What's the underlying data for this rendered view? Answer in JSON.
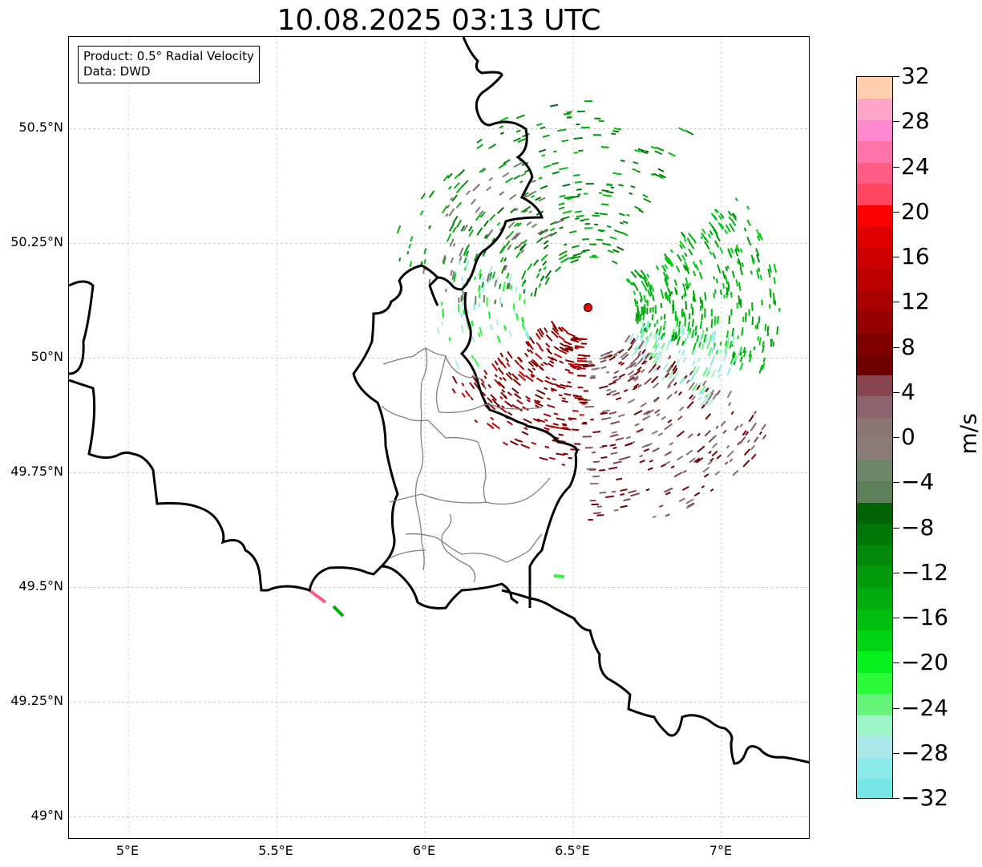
{
  "title": "10.08.2025 03:13 UTC",
  "info": {
    "product": "Product: 0.5° Radial Velocity",
    "data": "Data: DWD"
  },
  "map": {
    "lon_range": [
      4.8,
      7.3
    ],
    "lat_range": [
      48.95,
      50.7
    ],
    "lat_ticks": [
      {
        "value": 50.5,
        "label": "50.5°N"
      },
      {
        "value": 50.25,
        "label": "50.25°N"
      },
      {
        "value": 50.0,
        "label": "50°N"
      },
      {
        "value": 49.75,
        "label": "49.75°N"
      },
      {
        "value": 49.5,
        "label": "49.5°N"
      },
      {
        "value": 49.25,
        "label": "49.25°N"
      },
      {
        "value": 49.0,
        "label": "49°N"
      }
    ],
    "lon_ticks": [
      {
        "value": 5.0,
        "label": "5°E"
      },
      {
        "value": 5.5,
        "label": "5.5°E"
      },
      {
        "value": 6.0,
        "label": "6°E"
      },
      {
        "value": 6.5,
        "label": "6.5°E"
      },
      {
        "value": 7.0,
        "label": "7°E"
      }
    ],
    "radar_site": {
      "lon": 6.55,
      "lat": 50.11,
      "color": "#ff0000"
    },
    "colors": {
      "border": "#000000",
      "admin": "#808080",
      "grid": "#b0b0b0"
    }
  },
  "colorbar": {
    "unit": "m/s",
    "min": -32,
    "max": 32,
    "ticks": [
      {
        "value": 32,
        "label": "32"
      },
      {
        "value": 28,
        "label": "28"
      },
      {
        "value": 24,
        "label": "24"
      },
      {
        "value": 20,
        "label": "20"
      },
      {
        "value": 16,
        "label": "16"
      },
      {
        "value": 12,
        "label": "12"
      },
      {
        "value": 8,
        "label": "8"
      },
      {
        "value": 4,
        "label": "4"
      },
      {
        "value": 0,
        "label": "0"
      },
      {
        "value": -4,
        "label": "−4"
      },
      {
        "value": -8,
        "label": "−8"
      },
      {
        "value": -12,
        "label": "−12"
      },
      {
        "value": -16,
        "label": "−16"
      },
      {
        "value": -20,
        "label": "−20"
      },
      {
        "value": -24,
        "label": "−24"
      },
      {
        "value": -28,
        "label": "−28"
      },
      {
        "value": -32,
        "label": "−32"
      }
    ],
    "segments": [
      "#76e6e6",
      "#8ceaea",
      "#aae8ec",
      "#9ef5c8",
      "#66f57a",
      "#2cfa3a",
      "#06f01e",
      "#00d214",
      "#00be0f",
      "#00ab0c",
      "#009a0a",
      "#008808",
      "#007405",
      "#006304",
      "#5d7f5a",
      "#6c8667",
      "#8a7a78",
      "#8c7674",
      "#8b6470",
      "#884550",
      "#700000",
      "#800000",
      "#950000",
      "#a80000",
      "#bc0000",
      "#cc0000",
      "#e00000",
      "#fa0000",
      "#ff4560",
      "#ff5c85",
      "#ff74a8",
      "#ff88cf",
      "#ffa6c8",
      "#ffcfae"
    ]
  }
}
